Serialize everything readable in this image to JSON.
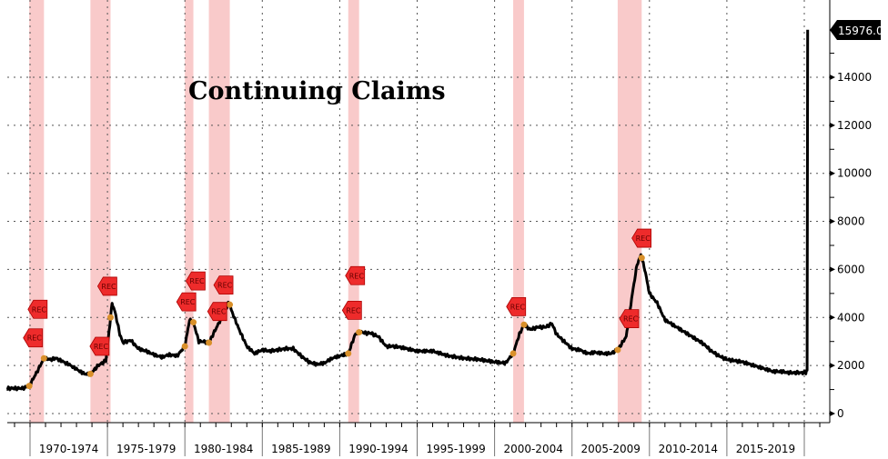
{
  "chart_data": {
    "type": "line",
    "title": "Continuing Claims",
    "xlabel": "",
    "ylabel": "",
    "xlim": [
      1968.5,
      2022.0
    ],
    "ylim": [
      -300,
      16500
    ],
    "y_ticks": [
      0,
      2000,
      4000,
      6000,
      8000,
      10000,
      12000,
      14000
    ],
    "y_tick_labels": [
      "0",
      "2000",
      "4000",
      "6000",
      "8000",
      "10000",
      "12000",
      "14000"
    ],
    "x_period_labels": [
      {
        "label": "1970-1974",
        "start": 1970,
        "end": 1975
      },
      {
        "label": "1975-1979",
        "start": 1975,
        "end": 1980
      },
      {
        "label": "1980-1984",
        "start": 1980,
        "end": 1985
      },
      {
        "label": "1985-1989",
        "start": 1985,
        "end": 1990
      },
      {
        "label": "1990-1994",
        "start": 1990,
        "end": 1995
      },
      {
        "label": "1995-1999",
        "start": 1995,
        "end": 2000
      },
      {
        "label": "2000-2004",
        "start": 2000,
        "end": 2005
      },
      {
        "label": "2005-2009",
        "start": 2005,
        "end": 2010
      },
      {
        "label": "2010-2014",
        "start": 2010,
        "end": 2015
      },
      {
        "label": "2015-2019",
        "start": 2015,
        "end": 2020
      }
    ],
    "grid": true,
    "last_value_label": "15976.0",
    "last_value": 15976.0,
    "recessions": [
      [
        1969.95,
        1970.9
      ],
      [
        1973.9,
        1975.2
      ],
      [
        1980.0,
        1980.55
      ],
      [
        1981.55,
        1982.9
      ],
      [
        1990.55,
        1991.25
      ],
      [
        2001.2,
        2001.9
      ],
      [
        2007.95,
        2009.5
      ]
    ],
    "rec_label": "REC",
    "rec_markers": [
      {
        "x": 1970.1,
        "y": 3150
      },
      {
        "x": 1970.4,
        "y": 2600
      },
      {
        "x": 1974.4,
        "y": 2800
      },
      {
        "x": 1974.9,
        "y": 5300
      },
      {
        "x": 1980.0,
        "y": 4650
      },
      {
        "x": 1980.6,
        "y": 4650
      },
      {
        "x": 1982.0,
        "y": 4250
      },
      {
        "x": 1982.4,
        "y": 5350
      },
      {
        "x": 1990.7,
        "y": 4300
      },
      {
        "x": 1990.9,
        "y": 4000
      },
      {
        "x": 2001.3,
        "y": 4450
      },
      {
        "x": 2008.6,
        "y": 3950
      },
      {
        "x": 2009.4,
        "y": 7300
      }
    ],
    "series": [
      {
        "name": "Continuing Claims",
        "color": "#000000",
        "x": [
          1968.5,
          1969.0,
          1969.5,
          1969.95,
          1970.5,
          1970.9,
          1971.3,
          1971.7,
          1972.0,
          1972.5,
          1973.0,
          1973.5,
          1973.9,
          1974.4,
          1974.9,
          1975.1,
          1975.3,
          1975.5,
          1975.8,
          1976.0,
          1976.5,
          1977.0,
          1977.5,
          1978.0,
          1978.5,
          1979.0,
          1979.5,
          1980.0,
          1980.3,
          1980.55,
          1980.9,
          1981.2,
          1981.55,
          1981.9,
          1982.3,
          1982.6,
          1982.85,
          1983.0,
          1983.5,
          1984.0,
          1984.5,
          1985.0,
          1985.5,
          1986.0,
          1986.5,
          1987.0,
          1987.5,
          1988.0,
          1988.5,
          1989.0,
          1989.5,
          1990.0,
          1990.55,
          1991.0,
          1991.3,
          1991.7,
          1992.0,
          1992.5,
          1993.0,
          1993.5,
          1994.0,
          1995.0,
          1996.0,
          1997.0,
          1998.0,
          1999.0,
          2000.0,
          2000.7,
          2001.2,
          2001.6,
          2001.9,
          2002.3,
          2002.8,
          2003.3,
          2003.7,
          2004.0,
          2004.5,
          2005.0,
          2005.5,
          2006.0,
          2006.5,
          2007.0,
          2007.5,
          2007.95,
          2008.5,
          2008.9,
          2009.2,
          2009.45,
          2009.7,
          2010.0,
          2010.5,
          2011.0,
          2011.5,
          2012.0,
          2012.5,
          2013.0,
          2013.5,
          2014.0,
          2014.5,
          2015.0,
          2015.5,
          2016.0,
          2016.5,
          2017.0,
          2017.5,
          2018.0,
          2018.5,
          2019.0,
          2019.5,
          2020.1,
          2020.18,
          2020.22
        ],
        "y": [
          1050,
          1050,
          1050,
          1150,
          1800,
          2300,
          2250,
          2300,
          2200,
          2050,
          1850,
          1650,
          1650,
          2000,
          2200,
          3400,
          4600,
          4200,
          3300,
          2950,
          3050,
          2700,
          2600,
          2450,
          2350,
          2450,
          2400,
          2800,
          3900,
          3800,
          3000,
          3000,
          2950,
          3400,
          3900,
          4300,
          4650,
          4300,
          3500,
          2800,
          2500,
          2650,
          2600,
          2650,
          2700,
          2700,
          2400,
          2150,
          2050,
          2100,
          2300,
          2400,
          2500,
          3300,
          3400,
          3350,
          3350,
          3200,
          2800,
          2800,
          2750,
          2600,
          2600,
          2400,
          2300,
          2250,
          2150,
          2100,
          2500,
          3300,
          3700,
          3500,
          3600,
          3600,
          3750,
          3300,
          3000,
          2700,
          2650,
          2500,
          2550,
          2500,
          2500,
          2650,
          3200,
          5000,
          6200,
          6600,
          6000,
          5000,
          4600,
          3900,
          3700,
          3500,
          3300,
          3100,
          2900,
          2600,
          2400,
          2250,
          2200,
          2150,
          2050,
          1950,
          1850,
          1750,
          1750,
          1700,
          1700,
          1700,
          1800,
          15976
        ]
      }
    ]
  }
}
